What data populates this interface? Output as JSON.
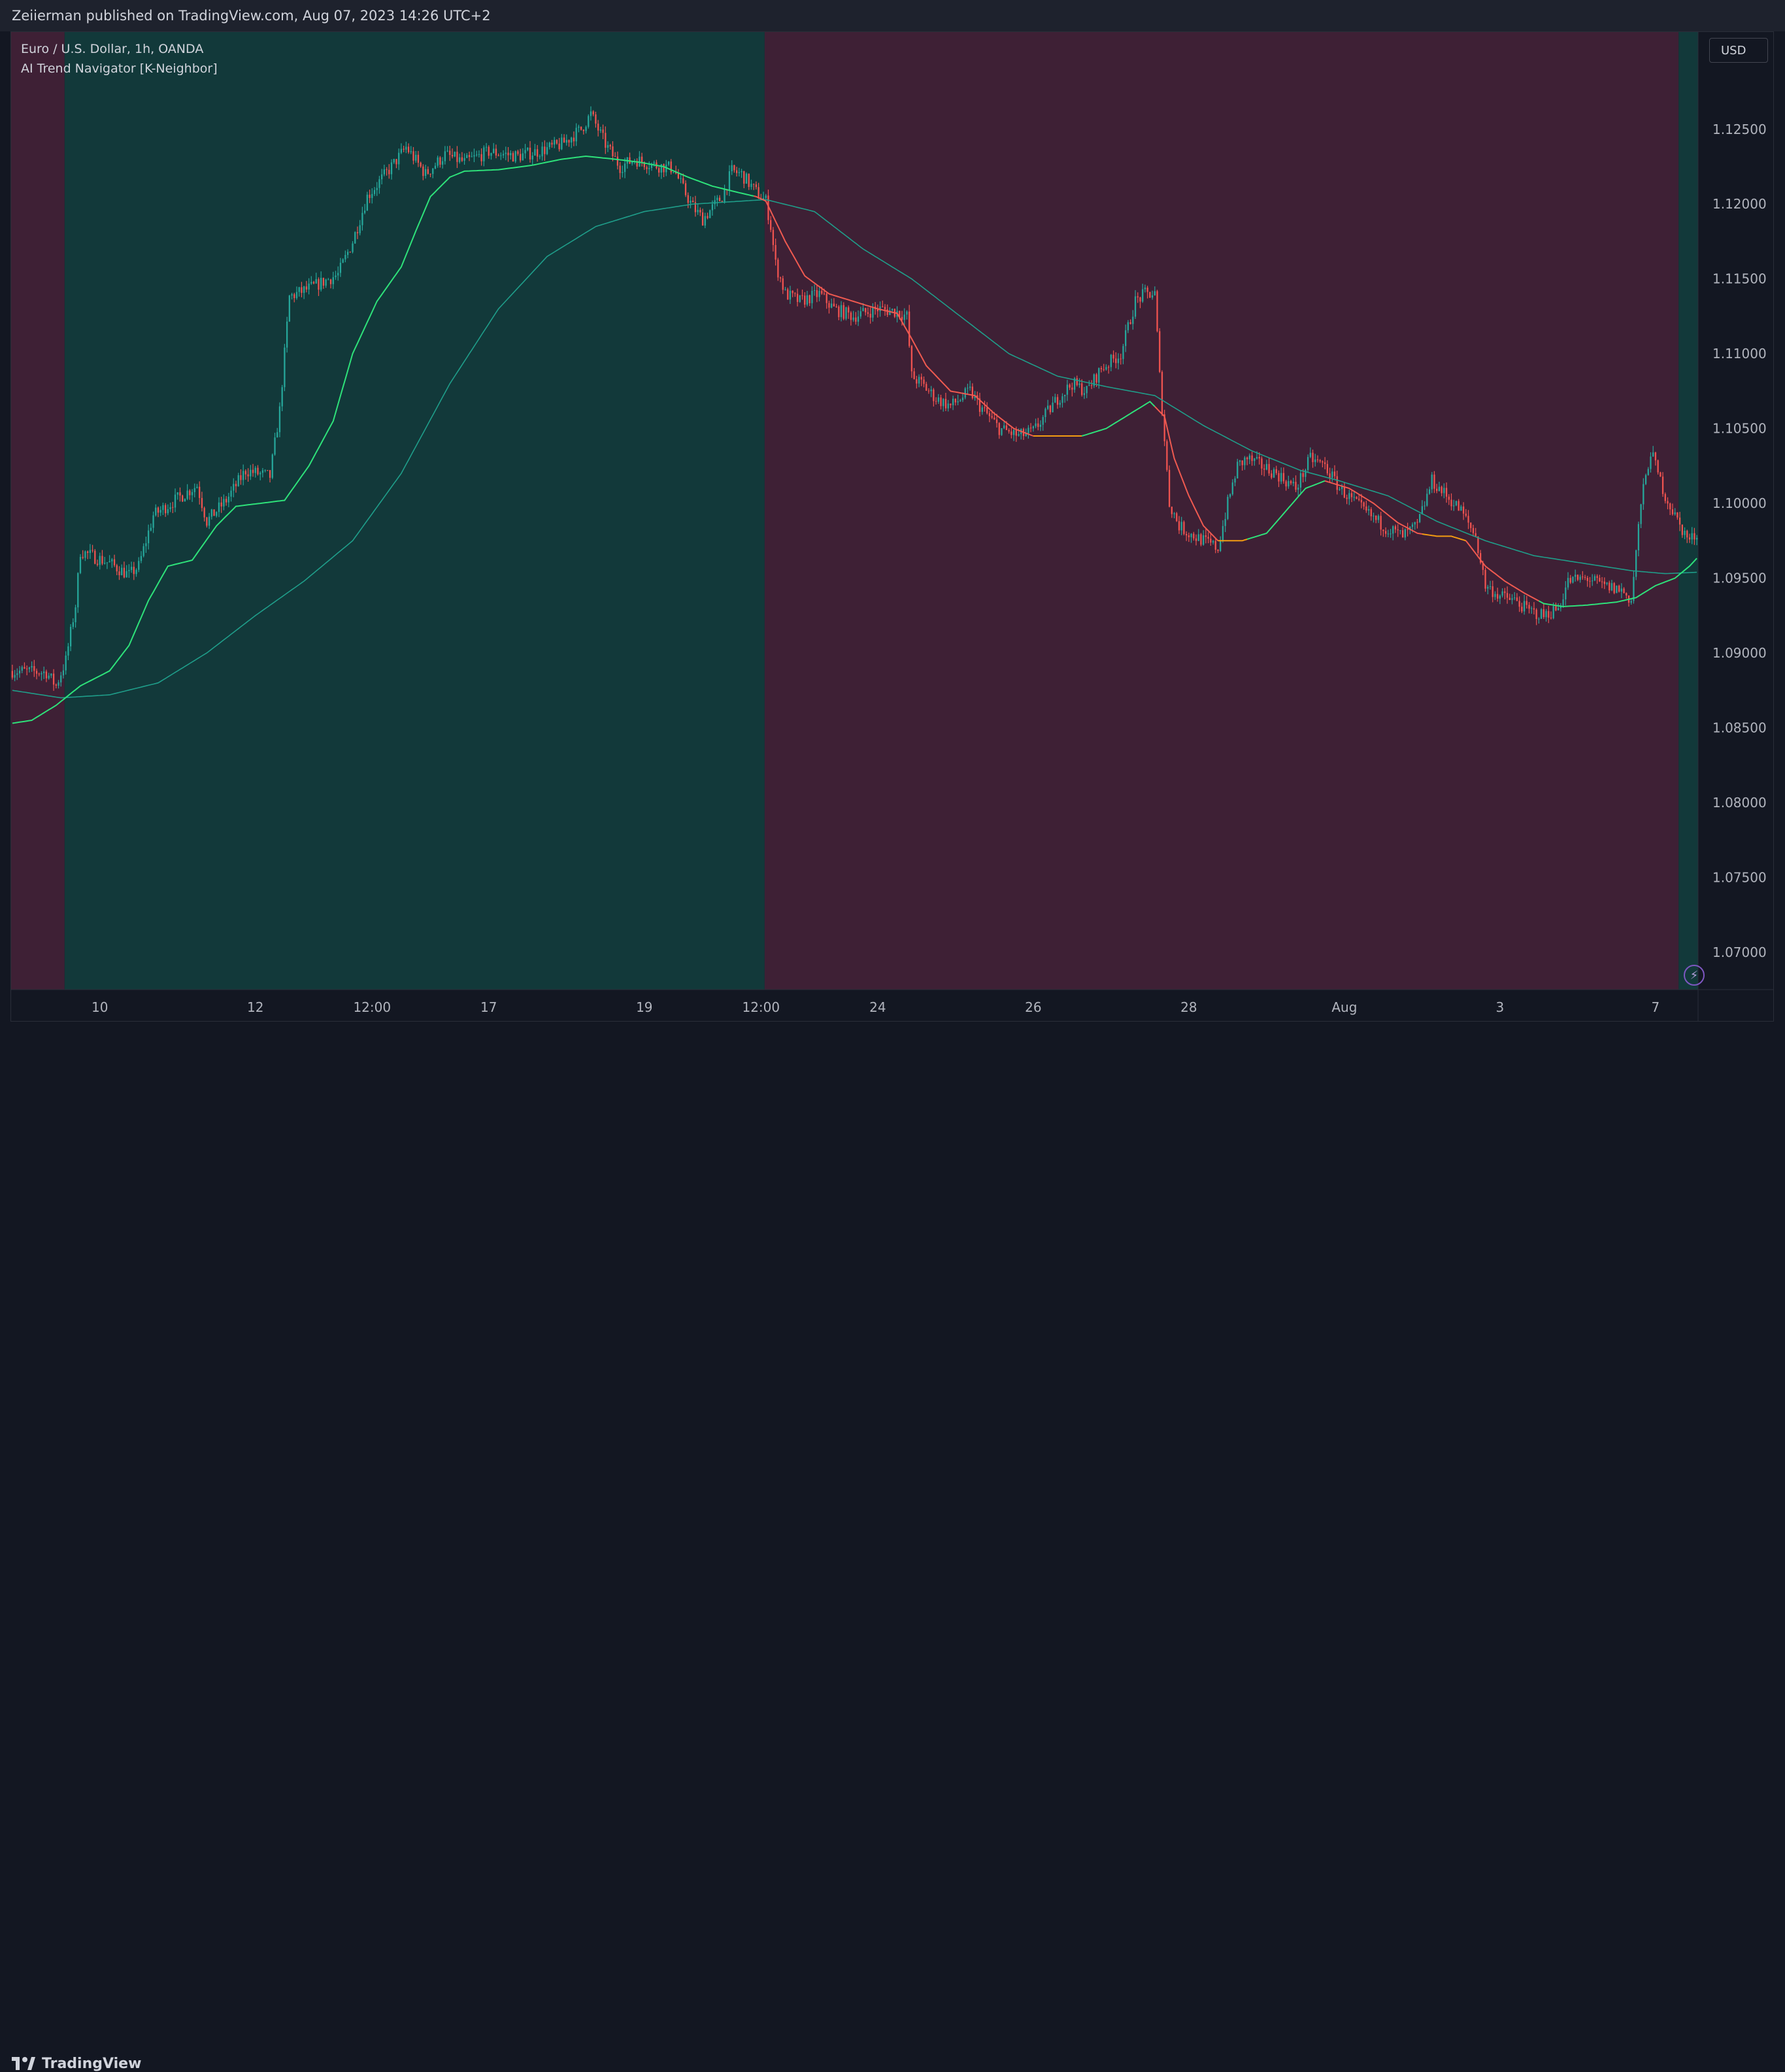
{
  "header": {
    "publish_text": "Zeiierman published on TradingView.com, Aug 07, 2023 14:26 UTC+2"
  },
  "legend": {
    "symbol_line": "Euro / U.S. Dollar, 1h, OANDA",
    "indicator_line": "AI Trend Navigator [K-Neighbor]"
  },
  "price_scale": {
    "currency": "USD"
  },
  "footer": {
    "logo_icon": "tradingview-logo-icon",
    "logo_text": "TradingView"
  },
  "icons": {
    "bolt": "lightning-bolt-icon"
  },
  "colors": {
    "background": "#131722",
    "bull_zone": "#12393a",
    "bear_zone": "#3e2035",
    "candle_up": "#26a69a",
    "candle_down": "#ef5350",
    "knn_bull": "#2ee27a",
    "knn_bear": "#f05a50",
    "knn_flat": "#f39c12",
    "trend_line": "#1f9e8a",
    "axis_text": "#b2b5be"
  },
  "chart_data": {
    "type": "candlestick",
    "instrument": "Euro / U.S. Dollar",
    "timeframe": "1h",
    "source": "OANDA",
    "y_ticks": [
      1.125,
      1.12,
      1.115,
      1.11,
      1.105,
      1.1,
      1.095,
      1.09,
      1.085,
      1.08,
      1.075,
      1.07
    ],
    "y_tick_labels": [
      "1.12500",
      "1.12000",
      "1.11500",
      "1.11000",
      "1.10500",
      "1.10000",
      "1.09500",
      "1.09000",
      "1.08500",
      "1.08000",
      "1.07500",
      "1.07000"
    ],
    "ylim": [
      1.0675,
      1.1315
    ],
    "x_ticks": [
      {
        "label": "10",
        "bar": 36
      },
      {
        "label": "12",
        "bar": 100
      },
      {
        "label": "12:00",
        "bar": 148
      },
      {
        "label": "17",
        "bar": 196
      },
      {
        "label": "19",
        "bar": 260
      },
      {
        "label": "12:00",
        "bar": 308
      },
      {
        "label": "24",
        "bar": 356
      },
      {
        "label": "26",
        "bar": 420
      },
      {
        "label": "28",
        "bar": 484
      },
      {
        "label": "Aug",
        "bar": 548
      },
      {
        "label": "3",
        "bar": 612
      },
      {
        "label": "7",
        "bar": 676
      }
    ],
    "bar_count": 694,
    "regimes": [
      {
        "trend": "bearish",
        "from_bar": 0,
        "to_bar": 22
      },
      {
        "trend": "bullish",
        "from_bar": 22,
        "to_bar": 310
      },
      {
        "trend": "bearish",
        "from_bar": 310,
        "to_bar": 686
      },
      {
        "trend": "bullish",
        "from_bar": 686,
        "to_bar": 694
      }
    ],
    "close_path": [
      [
        0,
        1.0888
      ],
      [
        14,
        1.0887
      ],
      [
        18,
        1.0878
      ],
      [
        22,
        1.0895
      ],
      [
        26,
        1.0932
      ],
      [
        28,
        1.0968
      ],
      [
        40,
        1.096
      ],
      [
        48,
        1.0952
      ],
      [
        52,
        1.0958
      ],
      [
        58,
        1.0992
      ],
      [
        66,
        1.1001
      ],
      [
        76,
        1.1012
      ],
      [
        80,
        1.0988
      ],
      [
        88,
        1.1002
      ],
      [
        96,
        1.1022
      ],
      [
        106,
        1.1018
      ],
      [
        110,
        1.1062
      ],
      [
        114,
        1.1138
      ],
      [
        124,
        1.1145
      ],
      [
        134,
        1.1153
      ],
      [
        140,
        1.1175
      ],
      [
        146,
        1.1205
      ],
      [
        156,
        1.1225
      ],
      [
        162,
        1.1238
      ],
      [
        170,
        1.122
      ],
      [
        178,
        1.1233
      ],
      [
        186,
        1.1228
      ],
      [
        196,
        1.1235
      ],
      [
        208,
        1.1232
      ],
      [
        218,
        1.1236
      ],
      [
        226,
        1.124
      ],
      [
        234,
        1.125
      ],
      [
        238,
        1.126
      ],
      [
        244,
        1.124
      ],
      [
        250,
        1.1225
      ],
      [
        256,
        1.123
      ],
      [
        264,
        1.1226
      ],
      [
        272,
        1.1224
      ],
      [
        276,
        1.121
      ],
      [
        280,
        1.1198
      ],
      [
        284,
        1.119
      ],
      [
        292,
        1.1205
      ],
      [
        296,
        1.1222
      ],
      [
        300,
        1.122
      ],
      [
        306,
        1.1208
      ],
      [
        310,
        1.1202
      ],
      [
        312,
        1.1185
      ],
      [
        314,
        1.116
      ],
      [
        318,
        1.114
      ],
      [
        324,
        1.1135
      ],
      [
        332,
        1.114
      ],
      [
        338,
        1.113
      ],
      [
        346,
        1.1125
      ],
      [
        356,
        1.113
      ],
      [
        364,
        1.1128
      ],
      [
        368,
        1.1125
      ],
      [
        370,
        1.1085
      ],
      [
        374,
        1.108
      ],
      [
        380,
        1.107
      ],
      [
        386,
        1.1065
      ],
      [
        394,
        1.1075
      ],
      [
        398,
        1.1065
      ],
      [
        406,
        1.105
      ],
      [
        414,
        1.1045
      ],
      [
        420,
        1.1048
      ],
      [
        430,
        1.107
      ],
      [
        436,
        1.108
      ],
      [
        442,
        1.1075
      ],
      [
        448,
        1.109
      ],
      [
        456,
        1.11
      ],
      [
        462,
        1.1135
      ],
      [
        466,
        1.114
      ],
      [
        470,
        1.114
      ],
      [
        472,
        1.1085
      ],
      [
        476,
        1.1
      ],
      [
        480,
        1.0985
      ],
      [
        484,
        1.098
      ],
      [
        490,
        1.0975
      ],
      [
        496,
        1.097
      ],
      [
        500,
        1.1
      ],
      [
        504,
        1.1025
      ],
      [
        508,
        1.103
      ],
      [
        514,
        1.1025
      ],
      [
        520,
        1.102
      ],
      [
        528,
        1.101
      ],
      [
        534,
        1.103
      ],
      [
        540,
        1.1025
      ],
      [
        546,
        1.101
      ],
      [
        556,
        1.0995
      ],
      [
        564,
        1.0985
      ],
      [
        572,
        1.0978
      ],
      [
        578,
        1.0985
      ],
      [
        584,
        1.1015
      ],
      [
        590,
        1.1005
      ],
      [
        596,
        1.0995
      ],
      [
        602,
        1.0978
      ],
      [
        606,
        1.0945
      ],
      [
        612,
        1.0938
      ],
      [
        618,
        1.0935
      ],
      [
        624,
        1.0928
      ],
      [
        630,
        1.0925
      ],
      [
        636,
        1.093
      ],
      [
        640,
        1.0948
      ],
      [
        648,
        1.095
      ],
      [
        654,
        1.0945
      ],
      [
        662,
        1.0942
      ],
      [
        666,
        1.0935
      ],
      [
        670,
        1.1
      ],
      [
        674,
        1.1035
      ],
      [
        680,
        1.1005
      ],
      [
        686,
        1.0985
      ],
      [
        690,
        1.0975
      ],
      [
        694,
        1.0982
      ]
    ],
    "knn_average": [
      [
        0,
        1.0853
      ],
      [
        8,
        1.0855
      ],
      [
        18,
        1.0865
      ],
      [
        28,
        1.0878
      ],
      [
        40,
        1.0888
      ],
      [
        48,
        1.0905
      ],
      [
        56,
        1.0935
      ],
      [
        64,
        1.0958
      ],
      [
        74,
        1.0962
      ],
      [
        84,
        1.0985
      ],
      [
        92,
        1.0998
      ],
      [
        102,
        1.1
      ],
      [
        112,
        1.1002
      ],
      [
        122,
        1.1025
      ],
      [
        132,
        1.1055
      ],
      [
        140,
        1.11
      ],
      [
        150,
        1.1135
      ],
      [
        160,
        1.1158
      ],
      [
        166,
        1.1182
      ],
      [
        172,
        1.1205
      ],
      [
        180,
        1.1218
      ],
      [
        186,
        1.1222
      ],
      [
        200,
        1.1223
      ],
      [
        214,
        1.1226
      ],
      [
        226,
        1.123
      ],
      [
        236,
        1.1232
      ],
      [
        248,
        1.123
      ],
      [
        258,
        1.1228
      ],
      [
        268,
        1.1225
      ],
      [
        278,
        1.1218
      ],
      [
        288,
        1.1212
      ],
      [
        298,
        1.1208
      ],
      [
        306,
        1.1205
      ],
      [
        310,
        1.1202
      ],
      [
        318,
        1.1175
      ],
      [
        326,
        1.1152
      ],
      [
        336,
        1.114
      ],
      [
        346,
        1.1135
      ],
      [
        356,
        1.113
      ],
      [
        364,
        1.1127
      ],
      [
        370,
        1.111
      ],
      [
        376,
        1.1092
      ],
      [
        386,
        1.1075
      ],
      [
        396,
        1.1072
      ],
      [
        404,
        1.106
      ],
      [
        412,
        1.105
      ],
      [
        420,
        1.1045
      ],
      [
        440,
        1.1045
      ],
      [
        450,
        1.105
      ],
      [
        460,
        1.106
      ],
      [
        468,
        1.1068
      ],
      [
        474,
        1.1058
      ],
      [
        478,
        1.103
      ],
      [
        484,
        1.1005
      ],
      [
        490,
        1.0985
      ],
      [
        496,
        1.0975
      ],
      [
        506,
        1.0975
      ],
      [
        516,
        1.098
      ],
      [
        524,
        1.0995
      ],
      [
        532,
        1.101
      ],
      [
        540,
        1.1015
      ],
      [
        550,
        1.101
      ],
      [
        560,
        1.1
      ],
      [
        570,
        1.0987
      ],
      [
        578,
        1.098
      ],
      [
        586,
        1.0978
      ],
      [
        592,
        1.0978
      ],
      [
        598,
        1.0975
      ],
      [
        606,
        1.0958
      ],
      [
        614,
        1.0948
      ],
      [
        622,
        1.094
      ],
      [
        630,
        1.0933
      ],
      [
        638,
        1.0931
      ],
      [
        648,
        1.0932
      ],
      [
        660,
        1.0934
      ],
      [
        668,
        1.0937
      ],
      [
        676,
        1.0945
      ],
      [
        684,
        1.095
      ],
      [
        690,
        1.0958
      ],
      [
        694,
        1.0965
      ]
    ],
    "knn_segments": [
      {
        "from_bar": 0,
        "to_bar": 305,
        "state": "bullish"
      },
      {
        "from_bar": 305,
        "to_bar": 420,
        "state": "bearish"
      },
      {
        "from_bar": 420,
        "to_bar": 440,
        "state": "flat"
      },
      {
        "from_bar": 440,
        "to_bar": 470,
        "state": "bullish"
      },
      {
        "from_bar": 470,
        "to_bar": 496,
        "state": "bearish"
      },
      {
        "from_bar": 496,
        "to_bar": 508,
        "state": "flat"
      },
      {
        "from_bar": 508,
        "to_bar": 540,
        "state": "bullish"
      },
      {
        "from_bar": 540,
        "to_bar": 580,
        "state": "bearish"
      },
      {
        "from_bar": 580,
        "to_bar": 598,
        "state": "flat"
      },
      {
        "from_bar": 598,
        "to_bar": 628,
        "state": "bearish"
      },
      {
        "from_bar": 628,
        "to_bar": 694,
        "state": "bullish"
      }
    ],
    "trend_average": [
      [
        0,
        1.0875
      ],
      [
        20,
        1.087
      ],
      [
        40,
        1.0872
      ],
      [
        60,
        1.088
      ],
      [
        80,
        1.09
      ],
      [
        100,
        1.0925
      ],
      [
        120,
        1.0948
      ],
      [
        140,
        1.0975
      ],
      [
        160,
        1.102
      ],
      [
        180,
        1.108
      ],
      [
        200,
        1.113
      ],
      [
        220,
        1.1165
      ],
      [
        240,
        1.1185
      ],
      [
        260,
        1.1195
      ],
      [
        280,
        1.12
      ],
      [
        300,
        1.1202
      ],
      [
        310,
        1.1203
      ],
      [
        330,
        1.1195
      ],
      [
        350,
        1.117
      ],
      [
        370,
        1.115
      ],
      [
        390,
        1.1125
      ],
      [
        410,
        1.11
      ],
      [
        430,
        1.1085
      ],
      [
        450,
        1.1078
      ],
      [
        470,
        1.1072
      ],
      [
        490,
        1.1052
      ],
      [
        510,
        1.1035
      ],
      [
        530,
        1.1022
      ],
      [
        546,
        1.1015
      ],
      [
        566,
        1.1005
      ],
      [
        586,
        1.0988
      ],
      [
        606,
        1.0975
      ],
      [
        626,
        1.0965
      ],
      [
        646,
        1.096
      ],
      [
        666,
        1.0955
      ],
      [
        680,
        1.0953
      ],
      [
        694,
        1.0954
      ]
    ]
  }
}
